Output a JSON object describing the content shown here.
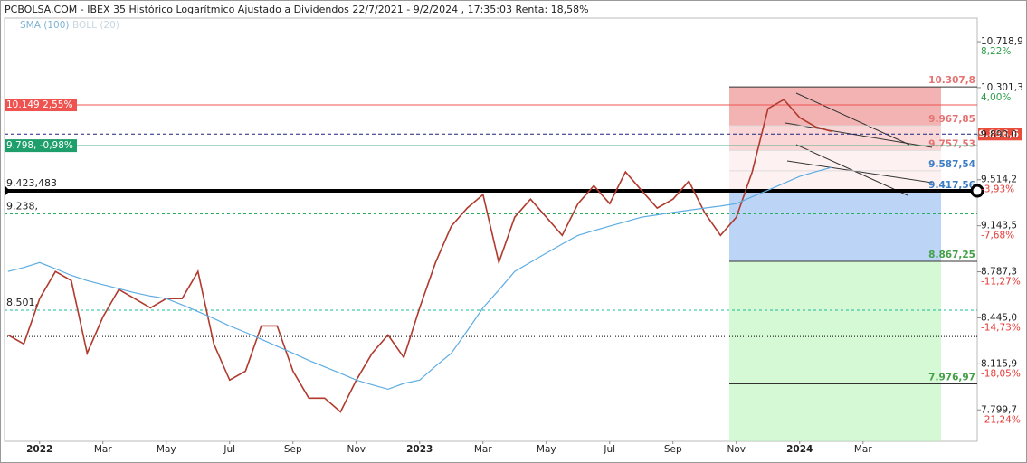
{
  "chart_data": {
    "type": "line",
    "title": "PCBOLSA.COM - IBEX 35 Histórico Logarítmico Ajustado a Dividendos 22/7/2021 - 9/2/2024 , 17:35:03 Renta: 18,58%",
    "indicators": [
      "SMA (100)",
      "BOLL (20)"
    ],
    "categories": [
      null,
      null,
      "2022",
      null,
      null,
      null,
      "Mar",
      null,
      null,
      null,
      "May",
      null,
      null,
      null,
      "Jul",
      null,
      null,
      null,
      "Sep",
      null,
      null,
      null,
      "Nov",
      null,
      null,
      null,
      "2023",
      null,
      null,
      null,
      "Mar",
      null,
      null,
      null,
      "May",
      null,
      null,
      null,
      "Jul",
      null,
      null,
      null,
      "Sep",
      null,
      null,
      null,
      "Nov",
      null,
      null,
      null,
      "2024",
      null,
      null,
      null,
      "Mar",
      null,
      null,
      null,
      null,
      null,
      null
    ],
    "series": [
      {
        "color": "#b03a2e",
        "values": [
          8321,
          8257,
          8586,
          8790,
          8721,
          8191,
          8452,
          8654,
          8586,
          8518,
          8586,
          8586,
          8790,
          8257,
          8003,
          8065,
          8386,
          8386,
          8065,
          7879,
          7879,
          7786,
          8003,
          8191,
          8321,
          8160,
          8518,
          8858,
          9140,
          9284,
          9393,
          8858,
          9211,
          9356,
          9211,
          9068,
          9320,
          9466,
          9320,
          9579,
          9429,
          9284,
          9356,
          9503,
          9247,
          9068,
          9211,
          9579,
          10117,
          10196,
          10038,
          9959,
          9920,
          null,
          null,
          null,
          null,
          null,
          null,
          null,
          null
        ]
      },
      {
        "color": "#5dade2",
        "values": [
          8790,
          8820,
          8858,
          8810,
          8760,
          8721,
          8690,
          8660,
          8630,
          8605,
          8586,
          8540,
          8490,
          8440,
          8386,
          8340,
          8290,
          8240,
          8191,
          8140,
          8095,
          8050,
          8003,
          7970,
          7940,
          7980,
          8003,
          8100,
          8191,
          8350,
          8518,
          8650,
          8790,
          8860,
          8930,
          9000,
          9068,
          9105,
          9140,
          9175,
          9211,
          9230,
          9250,
          9267,
          9284,
          9300,
          9320,
          9375,
          9429,
          9485,
          9541,
          9580,
          9615,
          null,
          null,
          null,
          null,
          null,
          null,
          null,
          null
        ]
      }
    ],
    "ylim": [
      7591,
      10939
    ],
    "log_scale": true,
    "yticks": [
      {
        "value": 10718.9,
        "label": "10.718,9"
      },
      {
        "value": 10301.3,
        "label": "10.301,3"
      },
      {
        "value": 9890.0,
        "label": "9.890,0"
      },
      {
        "value": 9514.2,
        "label": "9.514,2"
      },
      {
        "value": 9143.5,
        "label": "9.143,5"
      },
      {
        "value": 8787.3,
        "label": "8.787,3"
      },
      {
        "value": 8445.0,
        "label": "8.445,0"
      },
      {
        "value": 8115.9,
        "label": "8.115,9"
      },
      {
        "value": 7799.7,
        "label": "7.799,7"
      }
    ],
    "ytick_pct": [
      "8,22%",
      "4,00%",
      null,
      "-3,93%",
      "-7,68%",
      "-11,27%",
      "-14,73%",
      "-18,05%",
      "-21,24%"
    ],
    "price_tag": {
      "label": "9.896,6",
      "value": 9896.6,
      "color": "#e74c3c"
    },
    "left_levels": [
      {
        "label": "10.149  2,55%",
        "value": 10149,
        "color": "#ef5350",
        "style": "tag"
      },
      {
        "label": "9.798,  -0,98%",
        "value": 9798,
        "color": "#1e9e6a",
        "style": "tag"
      },
      {
        "label": "9.423,483",
        "value": 9423.483,
        "color": "#000000",
        "style": "thick"
      },
      {
        "label": "9.238,",
        "value": 9238,
        "color": "#27ae60",
        "style": "dashed"
      },
      {
        "label": "8.501,",
        "value": 8501,
        "color": "#1abc9c",
        "style": "dashed"
      }
    ],
    "dotted_level": {
      "value": 8310,
      "color": "#000000"
    },
    "fib_levels": [
      {
        "label": "10.307,8",
        "value": 10307.8,
        "color": "#e57373"
      },
      {
        "label": "9.967,85",
        "value": 9967.85,
        "color": "#e57373"
      },
      {
        "label": "9.757,53",
        "value": 9757.53,
        "color": "#e57373"
      },
      {
        "label": "9.587,54",
        "value": 9587.54,
        "color": "#3c7dc4"
      },
      {
        "label": "9.417,56",
        "value": 9417.56,
        "color": "#3c7dc4"
      },
      {
        "label": "8.867,25",
        "value": 8867.25,
        "color": "#43a047"
      },
      {
        "label": "7.976,97",
        "value": 7976.97,
        "color": "#43a047"
      }
    ]
  }
}
